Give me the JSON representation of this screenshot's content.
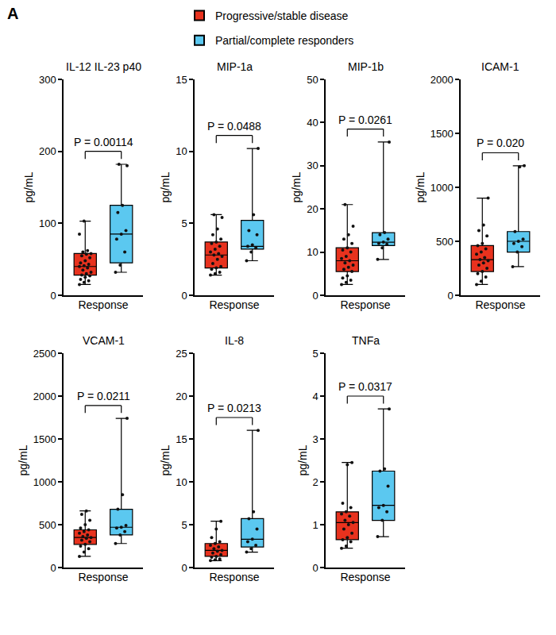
{
  "panel_label": "A",
  "chart_data": [
    {
      "type": "box",
      "title": "IL-12 IL-23 p40",
      "xlabel": "Response",
      "ylabel": "pg/mL",
      "ylim": [
        0,
        300
      ],
      "yticks": [
        0,
        100,
        200,
        300
      ],
      "tick_labels": "y",
      "grid": false,
      "legend": "top",
      "annotations": [
        "P = 0.00114"
      ],
      "series": [
        {
          "name": "Progressive/stable disease",
          "color": "#e8321e",
          "values": [
            15,
            18,
            20,
            22,
            25,
            27,
            28,
            30,
            32,
            35,
            38,
            40,
            41,
            43,
            45,
            48,
            52,
            55,
            57,
            58,
            60,
            62,
            85,
            103
          ],
          "q1": 28,
          "median": 40,
          "q3": 58,
          "min": 15,
          "max": 103
        },
        {
          "name": "Partial/complete responders",
          "color": "#5bc8f0",
          "values": [
            32,
            42,
            60,
            78,
            85,
            90,
            115,
            125,
            180,
            182
          ],
          "q1": 45,
          "median": 85,
          "q3": 125,
          "min": 32,
          "max": 182
        }
      ]
    },
    {
      "type": "box",
      "title": "MIP-1a",
      "xlabel": "Response",
      "ylabel": "pg/mL",
      "ylim": [
        0,
        15
      ],
      "yticks": [
        0,
        5,
        10,
        15
      ],
      "tick_labels": "y",
      "grid": false,
      "annotations": [
        "P = 0.0488"
      ],
      "series": [
        {
          "name": "Progressive/stable disease",
          "color": "#e8321e",
          "values": [
            1.4,
            1.5,
            1.6,
            1.8,
            1.9,
            2.0,
            2.2,
            2.5,
            2.7,
            2.8,
            2.9,
            3.0,
            3.2,
            3.4,
            3.6,
            3.7,
            3.9,
            4.2,
            4.6,
            5.4,
            5.6
          ],
          "q1": 1.9,
          "median": 2.8,
          "q3": 3.7,
          "min": 1.4,
          "max": 5.6
        },
        {
          "name": "Partial/complete responders",
          "color": "#5bc8f0",
          "values": [
            2.4,
            3.0,
            3.3,
            3.4,
            3.5,
            4.2,
            4.5,
            5.6,
            10.2
          ],
          "q1": 3.2,
          "median": 3.4,
          "q3": 5.2,
          "min": 2.4,
          "max": 10.2
        }
      ]
    },
    {
      "type": "box",
      "title": "MIP-1b",
      "xlabel": "Response",
      "ylabel": "pg/mL",
      "ylim": [
        0,
        50
      ],
      "yticks": [
        0,
        10,
        20,
        30,
        40,
        50
      ],
      "tick_labels": "y",
      "grid": false,
      "annotations": [
        "P = 0.0261"
      ],
      "series": [
        {
          "name": "Progressive/stable disease",
          "color": "#e8321e",
          "values": [
            2.5,
            3,
            3.5,
            4,
            4.5,
            5.5,
            6,
            6.5,
            7,
            7.5,
            8,
            8.5,
            9,
            10,
            10.5,
            11,
            12,
            13,
            14,
            16,
            21
          ],
          "q1": 5.5,
          "median": 8,
          "q3": 11,
          "min": 2.5,
          "max": 21
        },
        {
          "name": "Partial/complete responders",
          "color": "#5bc8f0",
          "values": [
            8.3,
            11,
            11.8,
            12,
            12.3,
            13,
            14,
            14.5,
            35.5
          ],
          "q1": 11.5,
          "median": 12.3,
          "q3": 14.5,
          "min": 8.3,
          "max": 35.5
        }
      ]
    },
    {
      "type": "box",
      "title": "ICAM-1",
      "xlabel": "Response",
      "ylabel": "pg/mL",
      "ylim": [
        0,
        2000
      ],
      "yticks": [
        0,
        500,
        1000,
        1500,
        2000
      ],
      "tick_labels": "y",
      "grid": false,
      "annotations": [
        "P = 0.020"
      ],
      "series": [
        {
          "name": "Progressive/stable disease",
          "color": "#e8321e",
          "values": [
            100,
            130,
            170,
            200,
            220,
            250,
            280,
            300,
            320,
            330,
            350,
            380,
            400,
            430,
            460,
            480,
            550,
            600,
            650,
            900
          ],
          "q1": 220,
          "median": 330,
          "q3": 460,
          "min": 100,
          "max": 900
        },
        {
          "name": "Partial/complete responders",
          "color": "#5bc8f0",
          "values": [
            265,
            400,
            450,
            480,
            500,
            520,
            590,
            1190,
            1200
          ],
          "q1": 400,
          "median": 500,
          "q3": 590,
          "min": 265,
          "max": 1200
        }
      ]
    },
    {
      "type": "box",
      "title": "VCAM-1",
      "xlabel": "Response",
      "ylabel": "pg/mL",
      "ylim": [
        0,
        2500
      ],
      "yticks": [
        0,
        500,
        1000,
        1500,
        2000,
        2500
      ],
      "tick_labels": "y",
      "grid": false,
      "annotations": [
        "P = 0.0211"
      ],
      "series": [
        {
          "name": "Progressive/stable disease",
          "color": "#e8321e",
          "values": [
            130,
            180,
            220,
            250,
            270,
            300,
            320,
            340,
            350,
            360,
            380,
            400,
            420,
            440,
            460,
            500,
            550,
            620,
            660
          ],
          "q1": 270,
          "median": 350,
          "q3": 440,
          "min": 130,
          "max": 660
        },
        {
          "name": "Partial/complete responders",
          "color": "#5bc8f0",
          "values": [
            280,
            380,
            420,
            460,
            470,
            490,
            680,
            850,
            1740
          ],
          "q1": 380,
          "median": 470,
          "q3": 680,
          "min": 280,
          "max": 1740
        }
      ]
    },
    {
      "type": "box",
      "title": "IL-8",
      "xlabel": "Response",
      "ylabel": "pg/mL",
      "ylim": [
        0,
        25
      ],
      "yticks": [
        0,
        5,
        10,
        15,
        20,
        25
      ],
      "tick_labels": "y",
      "grid": false,
      "annotations": [
        "P = 0.0213"
      ],
      "series": [
        {
          "name": "Progressive/stable disease",
          "color": "#e8321e",
          "values": [
            0.8,
            0.9,
            1.0,
            1.2,
            1.3,
            1.5,
            1.7,
            1.9,
            2.0,
            2.2,
            2.4,
            2.6,
            2.8,
            3.0,
            3.5,
            4.5,
            5.4
          ],
          "q1": 1.3,
          "median": 2,
          "q3": 2.8,
          "min": 0.8,
          "max": 5.4
        },
        {
          "name": "Partial/complete responders",
          "color": "#5bc8f0",
          "values": [
            1.8,
            2.2,
            2.6,
            3.0,
            3.3,
            4.5,
            5.7,
            6.5,
            16
          ],
          "q1": 2.4,
          "median": 3.3,
          "q3": 5.7,
          "min": 1.8,
          "max": 16
        }
      ]
    },
    {
      "type": "box",
      "title": "TNFa",
      "xlabel": "Response",
      "ylabel": "pg/mL",
      "ylim": [
        0,
        5
      ],
      "yticks": [
        0,
        1,
        2,
        3,
        4,
        5
      ],
      "tick_labels": "y",
      "grid": false,
      "annotations": [
        "P = 0.0317"
      ],
      "series": [
        {
          "name": "Progressive/stable disease",
          "color": "#e8321e",
          "values": [
            0.45,
            0.5,
            0.6,
            0.65,
            0.7,
            0.8,
            0.9,
            1.0,
            1.05,
            1.1,
            1.2,
            1.25,
            1.3,
            1.4,
            1.5,
            2.4,
            2.45
          ],
          "q1": 0.65,
          "median": 1.05,
          "q3": 1.3,
          "min": 0.45,
          "max": 2.45
        },
        {
          "name": "Partial/complete responders",
          "color": "#5bc8f0",
          "values": [
            0.72,
            1.1,
            1.3,
            1.4,
            1.45,
            1.9,
            2.25,
            2.3,
            3.7
          ],
          "q1": 1.1,
          "median": 1.45,
          "q3": 2.25,
          "min": 0.72,
          "max": 3.7
        }
      ]
    }
  ]
}
